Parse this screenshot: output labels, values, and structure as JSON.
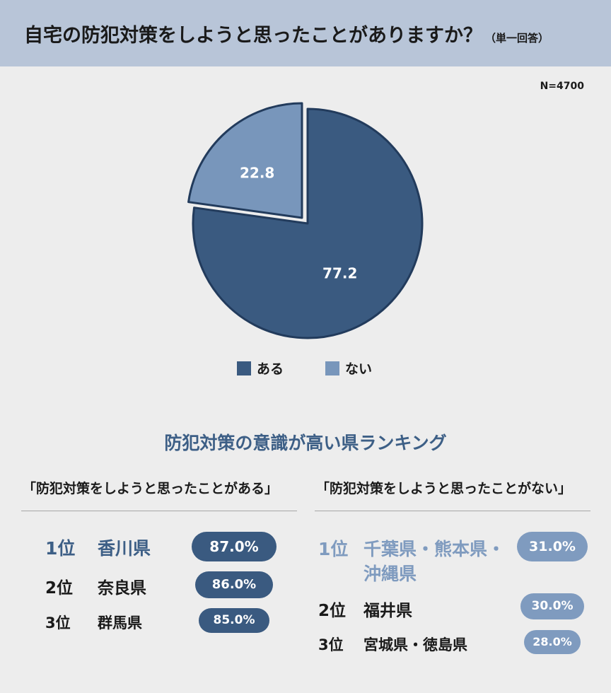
{
  "header": {
    "title": "自宅の防犯対策をしようと思ったことがありますか？",
    "subtitle": "（単一回答）"
  },
  "sample": "N=4700",
  "colors": {
    "aru": "#3a5a80",
    "nai": "#7896bb",
    "accent": "#3d5f86",
    "pill_light": "#7f9bbf"
  },
  "chart_data": {
    "type": "pie",
    "slices": [
      {
        "label": "ある",
        "value": 77.2
      },
      {
        "label": "ない",
        "value": 22.8
      }
    ],
    "legend_position": "bottom"
  },
  "legend": [
    {
      "label": "ある"
    },
    {
      "label": "ない"
    }
  ],
  "ranking": {
    "title": "防犯対策の意識が高い県ランキング",
    "left": {
      "heading": "「防犯対策をしようと思ったことがある」",
      "items": [
        {
          "rank": "1位",
          "name": "香川県",
          "value": "87.0%"
        },
        {
          "rank": "2位",
          "name": "奈良県",
          "value": "86.0%"
        },
        {
          "rank": "3位",
          "name": "群馬県",
          "value": "85.0%"
        }
      ]
    },
    "right": {
      "heading": "「防犯対策をしようと思ったことがない」",
      "items": [
        {
          "rank": "1位",
          "name_line1": "千葉県・熊本県・",
          "name_line2": "沖縄県",
          "value": "31.0%"
        },
        {
          "rank": "2位",
          "name": "福井県",
          "value": "30.0%"
        },
        {
          "rank": "3位",
          "name": "宮城県・徳島県",
          "value": "28.0%"
        }
      ]
    }
  }
}
